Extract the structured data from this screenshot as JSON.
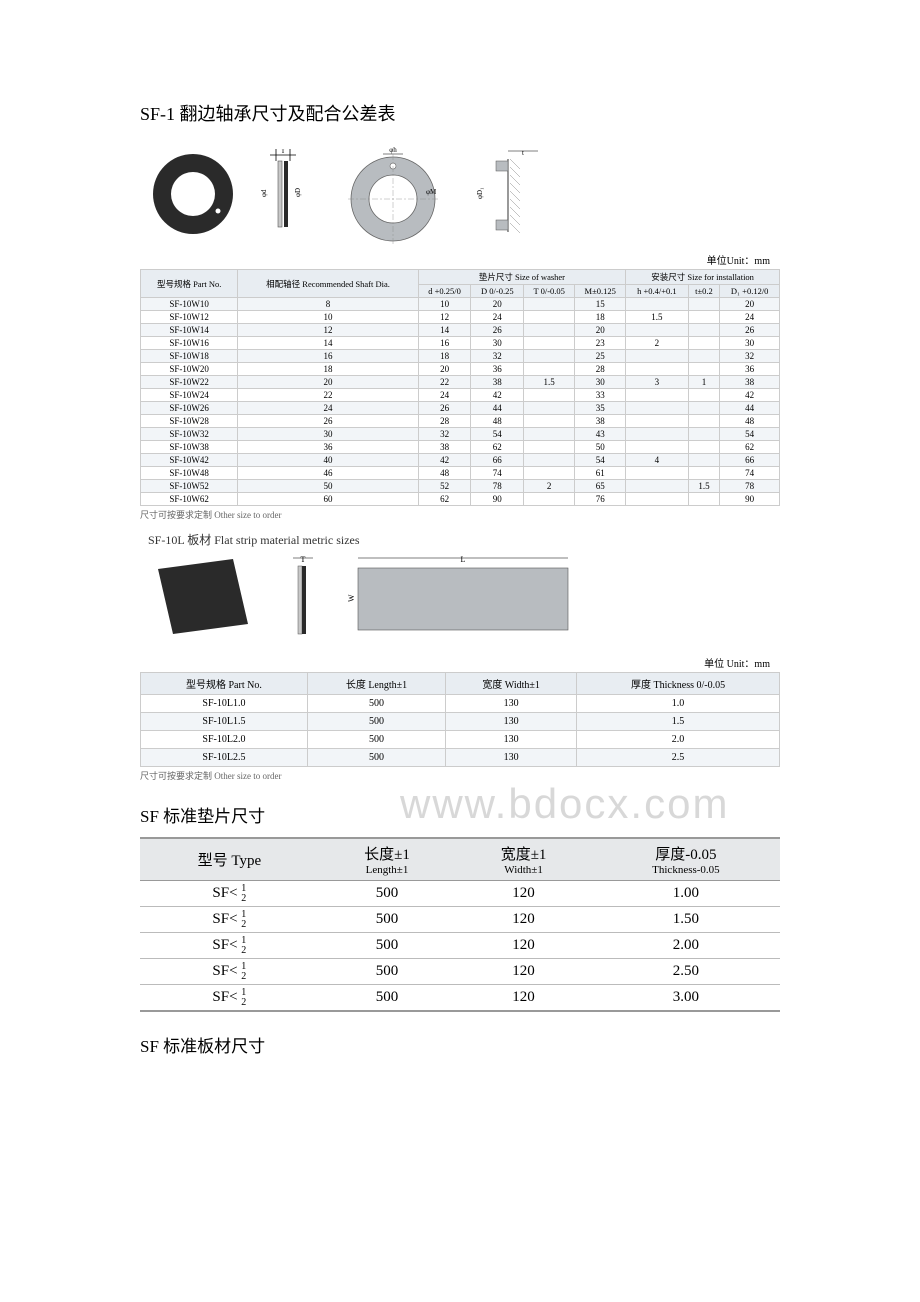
{
  "title1": "SF-1 翻边轴承尺寸及配合公差表",
  "unit_label": "单位Unit：mm",
  "washer_table": {
    "header_part": "型号规格\nPart No.",
    "header_shaft": "相配轴径\nRecommended\nShaft Dia.",
    "header_group_washer": "垫片尺寸 Size of washer",
    "header_group_install": "安装尺寸 Size for installation",
    "col_d": "d +0.25/0",
    "col_D": "D 0/-0.25",
    "col_T": "T 0/-0.05",
    "col_M": "M±0.125",
    "col_h": "h +0.4/+0.1",
    "col_t": "t±0.2",
    "col_D1": "D₁ +0.12/0",
    "rows": [
      [
        "SF-10W10",
        "8",
        "10",
        "20",
        "",
        "15",
        "",
        "",
        "20"
      ],
      [
        "SF-10W12",
        "10",
        "12",
        "24",
        "",
        "18",
        "1.5",
        "",
        "24"
      ],
      [
        "SF-10W14",
        "12",
        "14",
        "26",
        "",
        "20",
        "",
        "",
        "26"
      ],
      [
        "SF-10W16",
        "14",
        "16",
        "30",
        "",
        "23",
        "2",
        "",
        "30"
      ],
      [
        "SF-10W18",
        "16",
        "18",
        "32",
        "",
        "25",
        "",
        "",
        "32"
      ],
      [
        "SF-10W20",
        "18",
        "20",
        "36",
        "",
        "28",
        "",
        "",
        "36"
      ],
      [
        "SF-10W22",
        "20",
        "22",
        "38",
        "1.5",
        "30",
        "3",
        "1",
        "38"
      ],
      [
        "SF-10W24",
        "22",
        "24",
        "42",
        "",
        "33",
        "",
        "",
        "42"
      ],
      [
        "SF-10W26",
        "24",
        "26",
        "44",
        "",
        "35",
        "",
        "",
        "44"
      ],
      [
        "SF-10W28",
        "26",
        "28",
        "48",
        "",
        "38",
        "",
        "",
        "48"
      ],
      [
        "SF-10W32",
        "30",
        "32",
        "54",
        "",
        "43",
        "",
        "",
        "54"
      ],
      [
        "SF-10W38",
        "36",
        "38",
        "62",
        "",
        "50",
        "",
        "",
        "62"
      ],
      [
        "SF-10W42",
        "40",
        "42",
        "66",
        "",
        "54",
        "4",
        "",
        "66"
      ],
      [
        "SF-10W48",
        "46",
        "48",
        "74",
        "",
        "61",
        "",
        "",
        "74"
      ],
      [
        "SF-10W52",
        "50",
        "52",
        "78",
        "2",
        "65",
        "",
        "1.5",
        "78"
      ],
      [
        "SF-10W62",
        "60",
        "62",
        "90",
        "",
        "76",
        "",
        "",
        "90"
      ]
    ]
  },
  "footnote": "尺寸可按要求定制  Other size to order",
  "strip_header": "SF-10L 板材  Flat strip material metric sizes",
  "strip_unit": "单位 Unit：mm",
  "strip_table": {
    "cols": [
      "型号规格 Part No.",
      "长度 Length±1",
      "宽度 Width±1",
      "厚度 Thickness 0/-0.05"
    ],
    "rows": [
      [
        "SF-10L1.0",
        "500",
        "130",
        "1.0"
      ],
      [
        "SF-10L1.5",
        "500",
        "130",
        "1.5"
      ],
      [
        "SF-10L2.0",
        "500",
        "130",
        "2.0"
      ],
      [
        "SF-10L2.5",
        "500",
        "130",
        "2.5"
      ]
    ]
  },
  "watermark": "www.bdocx.com",
  "title2": "SF 标准垫片尺寸",
  "big_table": {
    "cols": {
      "c1": "型号 Type",
      "c2": "长度±1",
      "c2s": "Length±1",
      "c3": "宽度±1",
      "c3s": "Width±1",
      "c4": "厚度-0.05",
      "c4s": "Thickness-0.05"
    },
    "rows": [
      [
        "SF< ½",
        "500",
        "120",
        "1.00"
      ],
      [
        "SF< ½",
        "500",
        "120",
        "1.50"
      ],
      [
        "SF< ½",
        "500",
        "120",
        "2.00"
      ],
      [
        "SF< ½",
        "500",
        "120",
        "2.50"
      ],
      [
        "SF< ½",
        "500",
        "120",
        "3.00"
      ]
    ]
  },
  "title3": "SF 标准板材尺寸",
  "colors": {
    "header_bg": "#e8edf2",
    "alt_bg": "#f2f5f8",
    "border": "#cccccc",
    "watermark": "#d8d8d8",
    "diagram_gray": "#b8bcc0",
    "diagram_dark": "#2a2a2a"
  }
}
